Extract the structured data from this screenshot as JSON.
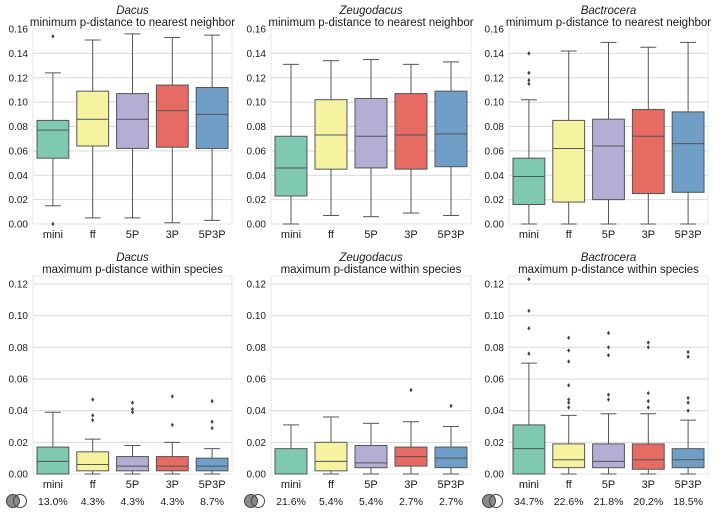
{
  "colors": {
    "mini": "#7fc8b2",
    "ff": "#f5f3a0",
    "5P": "#b3aed3",
    "3P": "#e66b63",
    "5P3P": "#6f9fc6",
    "axes_bg": "#ffffff",
    "grid": "#d8d8d8",
    "whisker": "#555555"
  },
  "footer_icon": "overlapping-circles-icon",
  "chart_data": [
    {
      "type": "box",
      "genus": "Dacus",
      "title": "minimum p-distance to nearest neighbor",
      "categories": [
        "mini",
        "ff",
        "5P",
        "3P",
        "5P3P"
      ],
      "ylim": [
        0,
        0.16
      ],
      "yticks": [
        "0.00",
        "0.02",
        "0.04",
        "0.06",
        "0.08",
        "0.10",
        "0.12",
        "0.14",
        "0.16"
      ],
      "grid": true,
      "boxes": [
        {
          "whislo": 0.015,
          "q1": 0.054,
          "med": 0.077,
          "q3": 0.085,
          "whishi": 0.124,
          "fliers": [
            0.154,
            0.0
          ]
        },
        {
          "whislo": 0.005,
          "q1": 0.064,
          "med": 0.086,
          "q3": 0.109,
          "whishi": 0.151,
          "fliers": []
        },
        {
          "whislo": 0.005,
          "q1": 0.062,
          "med": 0.086,
          "q3": 0.107,
          "whishi": 0.156,
          "fliers": []
        },
        {
          "whislo": 0.001,
          "q1": 0.063,
          "med": 0.093,
          "q3": 0.114,
          "whishi": 0.153,
          "fliers": []
        },
        {
          "whislo": 0.003,
          "q1": 0.062,
          "med": 0.09,
          "q3": 0.112,
          "whishi": 0.155,
          "fliers": []
        }
      ]
    },
    {
      "type": "box",
      "genus": "Zeugodacus",
      "title": "minimum p-distance to nearest neighbor",
      "categories": [
        "mini",
        "ff",
        "5P",
        "3P",
        "5P3P"
      ],
      "ylim": [
        0,
        0.16
      ],
      "yticks": [
        "0.00",
        "0.02",
        "0.04",
        "0.06",
        "0.08",
        "0.10",
        "0.12",
        "0.14",
        "0.16"
      ],
      "grid": true,
      "boxes": [
        {
          "whislo": 0.0,
          "q1": 0.023,
          "med": 0.046,
          "q3": 0.072,
          "whishi": 0.131,
          "fliers": []
        },
        {
          "whislo": 0.007,
          "q1": 0.045,
          "med": 0.073,
          "q3": 0.102,
          "whishi": 0.134,
          "fliers": []
        },
        {
          "whislo": 0.006,
          "q1": 0.046,
          "med": 0.072,
          "q3": 0.103,
          "whishi": 0.135,
          "fliers": []
        },
        {
          "whislo": 0.009,
          "q1": 0.045,
          "med": 0.073,
          "q3": 0.107,
          "whishi": 0.131,
          "fliers": []
        },
        {
          "whislo": 0.007,
          "q1": 0.047,
          "med": 0.074,
          "q3": 0.109,
          "whishi": 0.133,
          "fliers": []
        }
      ]
    },
    {
      "type": "box",
      "genus": "Bactrocera",
      "title": "minimum p-distance to nearest neighbor",
      "categories": [
        "mini",
        "ff",
        "5P",
        "3P",
        "5P3P"
      ],
      "ylim": [
        0,
        0.16
      ],
      "yticks": [
        "0.00",
        "0.02",
        "0.04",
        "0.06",
        "0.08",
        "0.10",
        "0.12",
        "0.14",
        "0.16"
      ],
      "grid": true,
      "boxes": [
        {
          "whislo": 0.0,
          "q1": 0.016,
          "med": 0.039,
          "q3": 0.054,
          "whishi": 0.102,
          "fliers": [
            0.14,
            0.124,
            0.118,
            0.115
          ]
        },
        {
          "whislo": 0.0,
          "q1": 0.018,
          "med": 0.062,
          "q3": 0.085,
          "whishi": 0.142,
          "fliers": []
        },
        {
          "whislo": 0.0,
          "q1": 0.02,
          "med": 0.064,
          "q3": 0.086,
          "whishi": 0.149,
          "fliers": []
        },
        {
          "whislo": 0.0,
          "q1": 0.025,
          "med": 0.072,
          "q3": 0.094,
          "whishi": 0.145,
          "fliers": []
        },
        {
          "whislo": 0.0,
          "q1": 0.026,
          "med": 0.066,
          "q3": 0.092,
          "whishi": 0.149,
          "fliers": []
        }
      ]
    },
    {
      "type": "box",
      "genus": "Dacus",
      "title": "maximum p-distance within species",
      "categories": [
        "mini",
        "ff",
        "5P",
        "3P",
        "5P3P"
      ],
      "ylim": [
        0,
        0.125
      ],
      "yticks": [
        "0.00",
        "0.02",
        "0.04",
        "0.06",
        "0.08",
        "0.10",
        "0.12"
      ],
      "grid": true,
      "percentages": [
        "13.0%",
        "4.3%",
        "4.3%",
        "4.3%",
        "8.7%"
      ],
      "boxes": [
        {
          "whislo": 0.0,
          "q1": 0.0,
          "med": 0.008,
          "q3": 0.017,
          "whishi": 0.039,
          "fliers": []
        },
        {
          "whislo": 0.0,
          "q1": 0.002,
          "med": 0.006,
          "q3": 0.014,
          "whishi": 0.022,
          "fliers": [
            0.047,
            0.037,
            0.034
          ]
        },
        {
          "whislo": 0.0,
          "q1": 0.002,
          "med": 0.005,
          "q3": 0.011,
          "whishi": 0.018,
          "fliers": [
            0.045,
            0.041,
            0.039
          ]
        },
        {
          "whislo": 0.0,
          "q1": 0.002,
          "med": 0.005,
          "q3": 0.011,
          "whishi": 0.02,
          "fliers": [
            0.049,
            0.031
          ]
        },
        {
          "whislo": 0.0,
          "q1": 0.002,
          "med": 0.005,
          "q3": 0.01,
          "whishi": 0.016,
          "fliers": [
            0.046,
            0.033,
            0.029
          ]
        }
      ]
    },
    {
      "type": "box",
      "genus": "Zeugodacus",
      "title": "maximum p-distance within species",
      "categories": [
        "mini",
        "ff",
        "5P",
        "3P",
        "5P3P"
      ],
      "ylim": [
        0,
        0.125
      ],
      "yticks": [
        "0.00",
        "0.02",
        "0.04",
        "0.06",
        "0.08",
        "0.10",
        "0.12"
      ],
      "grid": true,
      "percentages": [
        "21.6%",
        "5.4%",
        "5.4%",
        "2.7%",
        "2.7%"
      ],
      "boxes": [
        {
          "whislo": 0.0,
          "q1": 0.0,
          "med": 0.0,
          "q3": 0.016,
          "whishi": 0.031,
          "fliers": []
        },
        {
          "whislo": 0.0,
          "q1": 0.002,
          "med": 0.008,
          "q3": 0.02,
          "whishi": 0.036,
          "fliers": []
        },
        {
          "whislo": 0.0,
          "q1": 0.004,
          "med": 0.007,
          "q3": 0.018,
          "whishi": 0.032,
          "fliers": []
        },
        {
          "whislo": 0.0,
          "q1": 0.005,
          "med": 0.011,
          "q3": 0.017,
          "whishi": 0.033,
          "fliers": [
            0.053
          ]
        },
        {
          "whislo": 0.0,
          "q1": 0.004,
          "med": 0.01,
          "q3": 0.017,
          "whishi": 0.03,
          "fliers": [
            0.043
          ]
        }
      ]
    },
    {
      "type": "box",
      "genus": "Bactrocera",
      "title": "maximum p-distance within species",
      "categories": [
        "mini",
        "ff",
        "5P",
        "3P",
        "5P3P"
      ],
      "ylim": [
        0,
        0.125
      ],
      "yticks": [
        "0.00",
        "0.02",
        "0.04",
        "0.06",
        "0.08",
        "0.10",
        "0.12"
      ],
      "grid": true,
      "percentages": [
        "34.7%",
        "22.6%",
        "21.8%",
        "20.2%",
        "18.5%"
      ],
      "boxes": [
        {
          "whislo": 0.0,
          "q1": 0.0,
          "med": 0.016,
          "q3": 0.031,
          "whishi": 0.07,
          "fliers": [
            0.123,
            0.103,
            0.092,
            0.076
          ]
        },
        {
          "whislo": 0.0,
          "q1": 0.004,
          "med": 0.009,
          "q3": 0.019,
          "whishi": 0.037,
          "fliers": [
            0.086,
            0.078,
            0.071,
            0.056,
            0.047,
            0.045,
            0.042
          ]
        },
        {
          "whislo": 0.0,
          "q1": 0.004,
          "med": 0.008,
          "q3": 0.019,
          "whishi": 0.038,
          "fliers": [
            0.089,
            0.08,
            0.075,
            0.05,
            0.047
          ]
        },
        {
          "whislo": 0.0,
          "q1": 0.003,
          "med": 0.009,
          "q3": 0.019,
          "whishi": 0.038,
          "fliers": [
            0.083,
            0.08,
            0.051,
            0.046,
            0.042
          ]
        },
        {
          "whislo": 0.0,
          "q1": 0.004,
          "med": 0.009,
          "q3": 0.016,
          "whishi": 0.034,
          "fliers": [
            0.077,
            0.074,
            0.048,
            0.045,
            0.04
          ]
        }
      ]
    }
  ]
}
